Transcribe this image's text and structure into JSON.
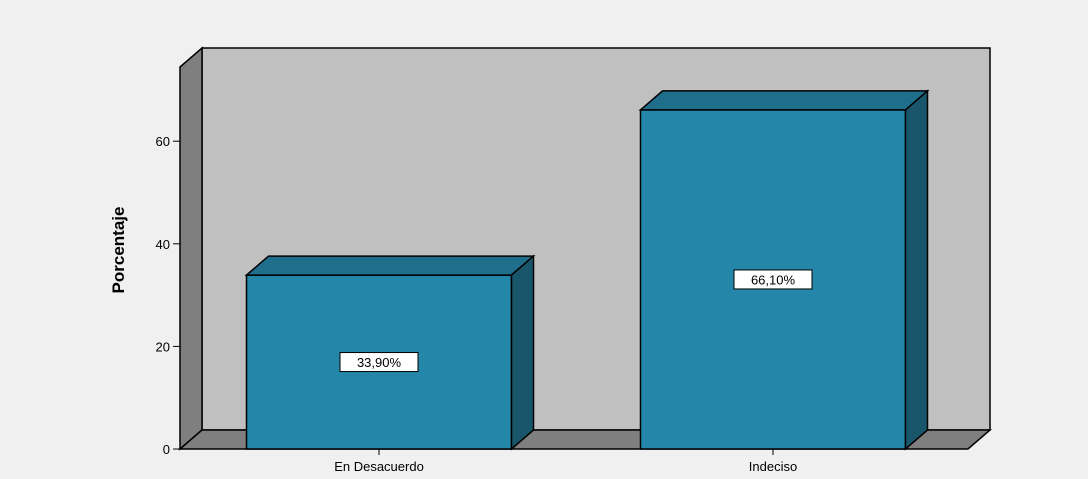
{
  "chart_data": {
    "type": "bar",
    "categories": [
      "En Desacuerdo",
      "Indeciso"
    ],
    "values": [
      33.9,
      66.1
    ],
    "data_labels": [
      "33,90%",
      "66,10%"
    ],
    "xlabel": "",
    "ylabel": "Porcentaje",
    "ylim": [
      0,
      70
    ],
    "y_ticks": [
      0,
      20,
      40,
      60
    ],
    "grid": false,
    "style": "3d",
    "colors": {
      "bar_front": "#2487a9",
      "bar_top": "#1f6e8c",
      "bar_side": "#1a566b",
      "back_wall": "#c0c0c0",
      "side_wall": "#7f7f7f",
      "floor": "#7f7f7f",
      "background": "#f0f0f0"
    }
  }
}
